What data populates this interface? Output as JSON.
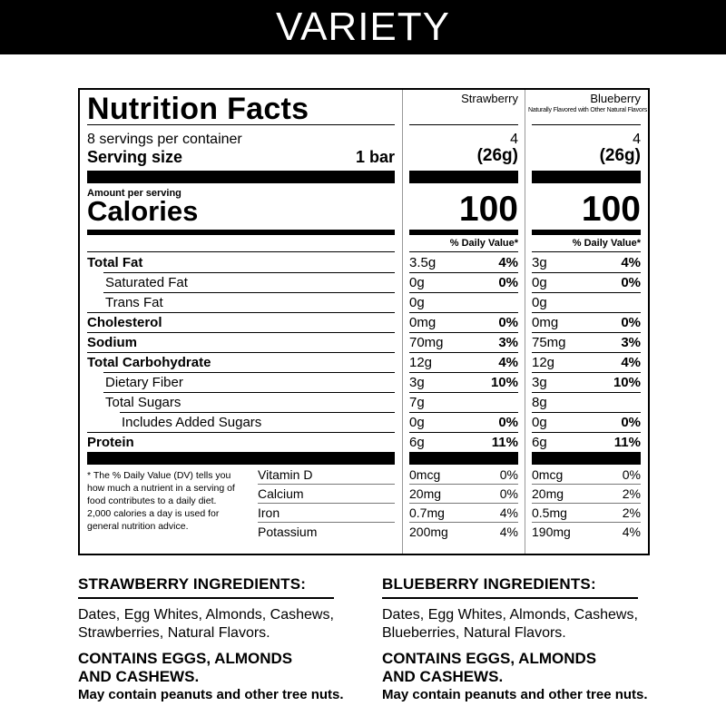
{
  "banner": "VARIETY",
  "label": {
    "title": "Nutrition Facts",
    "servings": "8 servings per container",
    "serving_size_label": "Serving size",
    "serving_size_value": "1 bar",
    "amount_per_serving": "Amount per serving",
    "calories_label": "Calories",
    "dv_header": "% Daily Value*",
    "footnote": "* The % Daily Value (DV) tells you how much a nutrient in a serving of food contributes to a daily diet. 2,000 calories a day is used for general nutrition advice."
  },
  "columns": [
    {
      "name": "Strawberry",
      "sub": "",
      "servings": "4",
      "serving_size": "(26g)",
      "calories": "100",
      "nutrients": [
        {
          "amount": "3.5g",
          "dv": "4%"
        },
        {
          "amount": "0g",
          "dv": "0%"
        },
        {
          "amount": "0g",
          "dv": ""
        },
        {
          "amount": "0mg",
          "dv": "0%"
        },
        {
          "amount": "70mg",
          "dv": "3%"
        },
        {
          "amount": "12g",
          "dv": "4%"
        },
        {
          "amount": "3g",
          "dv": "10%"
        },
        {
          "amount": "7g",
          "dv": ""
        },
        {
          "amount": "0g",
          "dv": "0%"
        },
        {
          "amount": "6g",
          "dv": "11%"
        }
      ],
      "vitamins": [
        {
          "amount": "0mcg",
          "dv": "0%"
        },
        {
          "amount": "20mg",
          "dv": "0%"
        },
        {
          "amount": "0.7mg",
          "dv": "4%"
        },
        {
          "amount": "200mg",
          "dv": "4%"
        }
      ]
    },
    {
      "name": "Blueberry",
      "sub": "Naturally Flavored with Other Natural Flavors",
      "servings": "4",
      "serving_size": "(26g)",
      "calories": "100",
      "nutrients": [
        {
          "amount": "3g",
          "dv": "4%"
        },
        {
          "amount": "0g",
          "dv": "0%"
        },
        {
          "amount": "0g",
          "dv": ""
        },
        {
          "amount": "0mg",
          "dv": "0%"
        },
        {
          "amount": "75mg",
          "dv": "3%"
        },
        {
          "amount": "12g",
          "dv": "4%"
        },
        {
          "amount": "3g",
          "dv": "10%"
        },
        {
          "amount": "8g",
          "dv": ""
        },
        {
          "amount": "0g",
          "dv": "0%"
        },
        {
          "amount": "6g",
          "dv": "11%"
        }
      ],
      "vitamins": [
        {
          "amount": "0mcg",
          "dv": "0%"
        },
        {
          "amount": "20mg",
          "dv": "2%"
        },
        {
          "amount": "0.5mg",
          "dv": "2%"
        },
        {
          "amount": "190mg",
          "dv": "4%"
        }
      ]
    }
  ],
  "nutrient_labels": [
    {
      "name": "Total Fat",
      "bold": true,
      "indent": 0
    },
    {
      "name": "Saturated Fat",
      "bold": false,
      "indent": 1
    },
    {
      "name": "Trans Fat",
      "bold": false,
      "indent": 1
    },
    {
      "name": "Cholesterol",
      "bold": true,
      "indent": 0
    },
    {
      "name": "Sodium",
      "bold": true,
      "indent": 0
    },
    {
      "name": "Total Carbohydrate",
      "bold": true,
      "indent": 0
    },
    {
      "name": "Dietary Fiber",
      "bold": false,
      "indent": 1
    },
    {
      "name": "Total Sugars",
      "bold": false,
      "indent": 1
    },
    {
      "name": "Includes Added Sugars",
      "bold": false,
      "indent": 2
    },
    {
      "name": "Protein",
      "bold": true,
      "indent": 0
    }
  ],
  "vitamin_labels": [
    "Vitamin D",
    "Calcium",
    "Iron",
    "Potassium"
  ],
  "ingredients": [
    {
      "title": "STRAWBERRY INGREDIENTS:",
      "text": "Dates, Egg Whites, Almonds, Cashews, Strawberries, Natural Flavors.",
      "contains": "CONTAINS EGGS, ALMONDS AND CASHEWS.",
      "may_contain": "May contain peanuts and other tree nuts."
    },
    {
      "title": "BLUEBERRY INGREDIENTS:",
      "text": "Dates, Egg Whites, Almonds, Cashews, Blueberries, Natural Flavors.",
      "contains": "CONTAINS EGGS, ALMONDS AND CASHEWS.",
      "may_contain": "May contain peanuts and other tree nuts."
    }
  ]
}
